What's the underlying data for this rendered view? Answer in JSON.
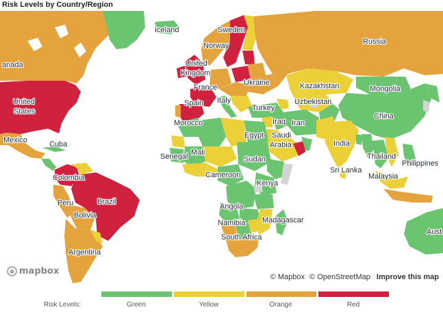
{
  "title": "Risk Levels by Country/Region",
  "colors": {
    "green": "#6bc46f",
    "yellow": "#ebd038",
    "orange": "#e4a33c",
    "red": "#d0213f",
    "grey": "#d4d4d4"
  },
  "labels": [
    "Iceland",
    "Sweden",
    "Norway",
    "Russia",
    "anada",
    "United Kingdom",
    "France",
    "Ukraine",
    "Kazakhstan",
    "Mongolia",
    "United States",
    "Spain",
    "Italy",
    "Turkey",
    "Uzbekistan",
    "China",
    "Morocco",
    "Iraq",
    "Iran",
    "Mexico",
    "Cuba",
    "Egypt",
    "Saudi Arabia",
    "India",
    "Mali",
    "Senegal",
    "Sudan",
    "Thailand",
    "Philippines",
    "Colombia",
    "Cameroon",
    "Sri Lanka",
    "Malaysia",
    "Kenya",
    "Peru",
    "Brazil",
    "Angola",
    "Bolivia",
    "Namibia",
    "Madagascar",
    "South Africa",
    "Argentina",
    "Aust"
  ],
  "attribution": {
    "mapbox": "© Mapbox",
    "osm": "© OpenStreetMap",
    "improve": "Improve this map"
  },
  "logo": "mapbox",
  "legend": {
    "title": "Risk Levels:",
    "items": [
      {
        "label": "Green",
        "color": "#6bc46f"
      },
      {
        "label": "Yellow",
        "color": "#ebd038"
      },
      {
        "label": "Orange",
        "color": "#e4a33c"
      },
      {
        "label": "Red",
        "color": "#d0213f"
      }
    ]
  }
}
